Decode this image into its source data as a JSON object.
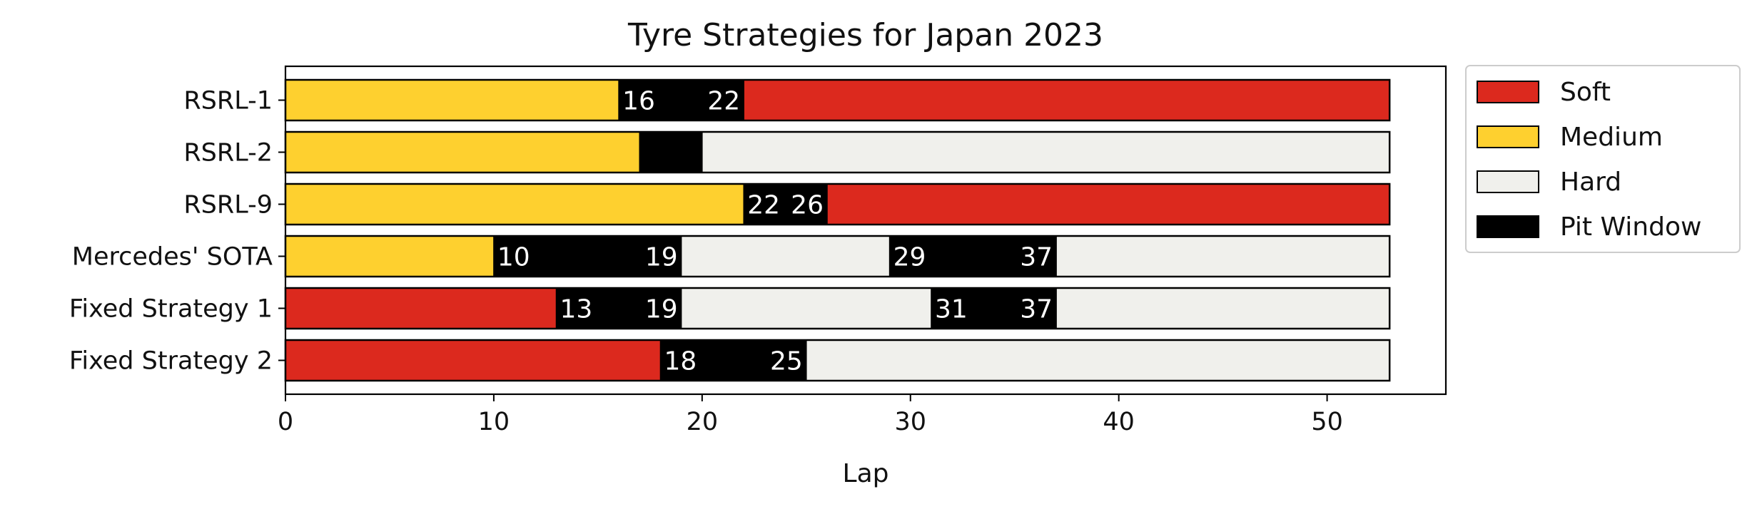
{
  "chart_data": {
    "type": "bar",
    "orientation": "horizontal-stacked",
    "title": "Tyre Strategies for Japan 2023",
    "xlabel": "Lap",
    "ylabel": "",
    "xlim": [
      0,
      55.7
    ],
    "xticks": [
      0,
      10,
      20,
      30,
      40,
      50
    ],
    "grid": false,
    "legend_position": "outside-right",
    "legend": [
      {
        "key": "soft",
        "label": "Soft",
        "color": "#dc291e"
      },
      {
        "key": "medium",
        "label": "Medium",
        "color": "#fed02f"
      },
      {
        "key": "hard",
        "label": "Hard",
        "color": "#f0f0ec"
      },
      {
        "key": "pit",
        "label": "Pit Window",
        "color": "#000000"
      }
    ],
    "strategies": [
      {
        "name": "RSRL-1",
        "stints": [
          {
            "compound": "medium",
            "start": 0,
            "end": 16
          },
          {
            "compound": "pit",
            "start": 16,
            "end": 22,
            "labels": [
              "16",
              "22"
            ]
          },
          {
            "compound": "soft",
            "start": 22,
            "end": 53
          }
        ]
      },
      {
        "name": "RSRL-2",
        "stints": [
          {
            "compound": "medium",
            "start": 0,
            "end": 17
          },
          {
            "compound": "pit",
            "start": 17,
            "end": 20
          },
          {
            "compound": "hard",
            "start": 20,
            "end": 53
          }
        ]
      },
      {
        "name": "RSRL-9",
        "stints": [
          {
            "compound": "medium",
            "start": 0,
            "end": 22
          },
          {
            "compound": "pit",
            "start": 22,
            "end": 26,
            "labels": [
              "22",
              "26"
            ]
          },
          {
            "compound": "soft",
            "start": 26,
            "end": 53
          }
        ]
      },
      {
        "name": "Mercedes' SOTA",
        "stints": [
          {
            "compound": "medium",
            "start": 0,
            "end": 10
          },
          {
            "compound": "pit",
            "start": 10,
            "end": 19,
            "labels": [
              "10",
              "19"
            ]
          },
          {
            "compound": "hard",
            "start": 19,
            "end": 29
          },
          {
            "compound": "pit",
            "start": 29,
            "end": 37,
            "labels": [
              "29",
              "37"
            ]
          },
          {
            "compound": "hard",
            "start": 37,
            "end": 53
          }
        ]
      },
      {
        "name": "Fixed Strategy 1",
        "stints": [
          {
            "compound": "soft",
            "start": 0,
            "end": 13
          },
          {
            "compound": "pit",
            "start": 13,
            "end": 19,
            "labels": [
              "13",
              "19"
            ]
          },
          {
            "compound": "hard",
            "start": 19,
            "end": 31
          },
          {
            "compound": "pit",
            "start": 31,
            "end": 37,
            "labels": [
              "31",
              "37"
            ]
          },
          {
            "compound": "hard",
            "start": 37,
            "end": 53
          }
        ]
      },
      {
        "name": "Fixed Strategy 2",
        "stints": [
          {
            "compound": "soft",
            "start": 0,
            "end": 18
          },
          {
            "compound": "pit",
            "start": 18,
            "end": 25,
            "labels": [
              "18",
              "25"
            ]
          },
          {
            "compound": "hard",
            "start": 25,
            "end": 53
          }
        ]
      }
    ]
  }
}
